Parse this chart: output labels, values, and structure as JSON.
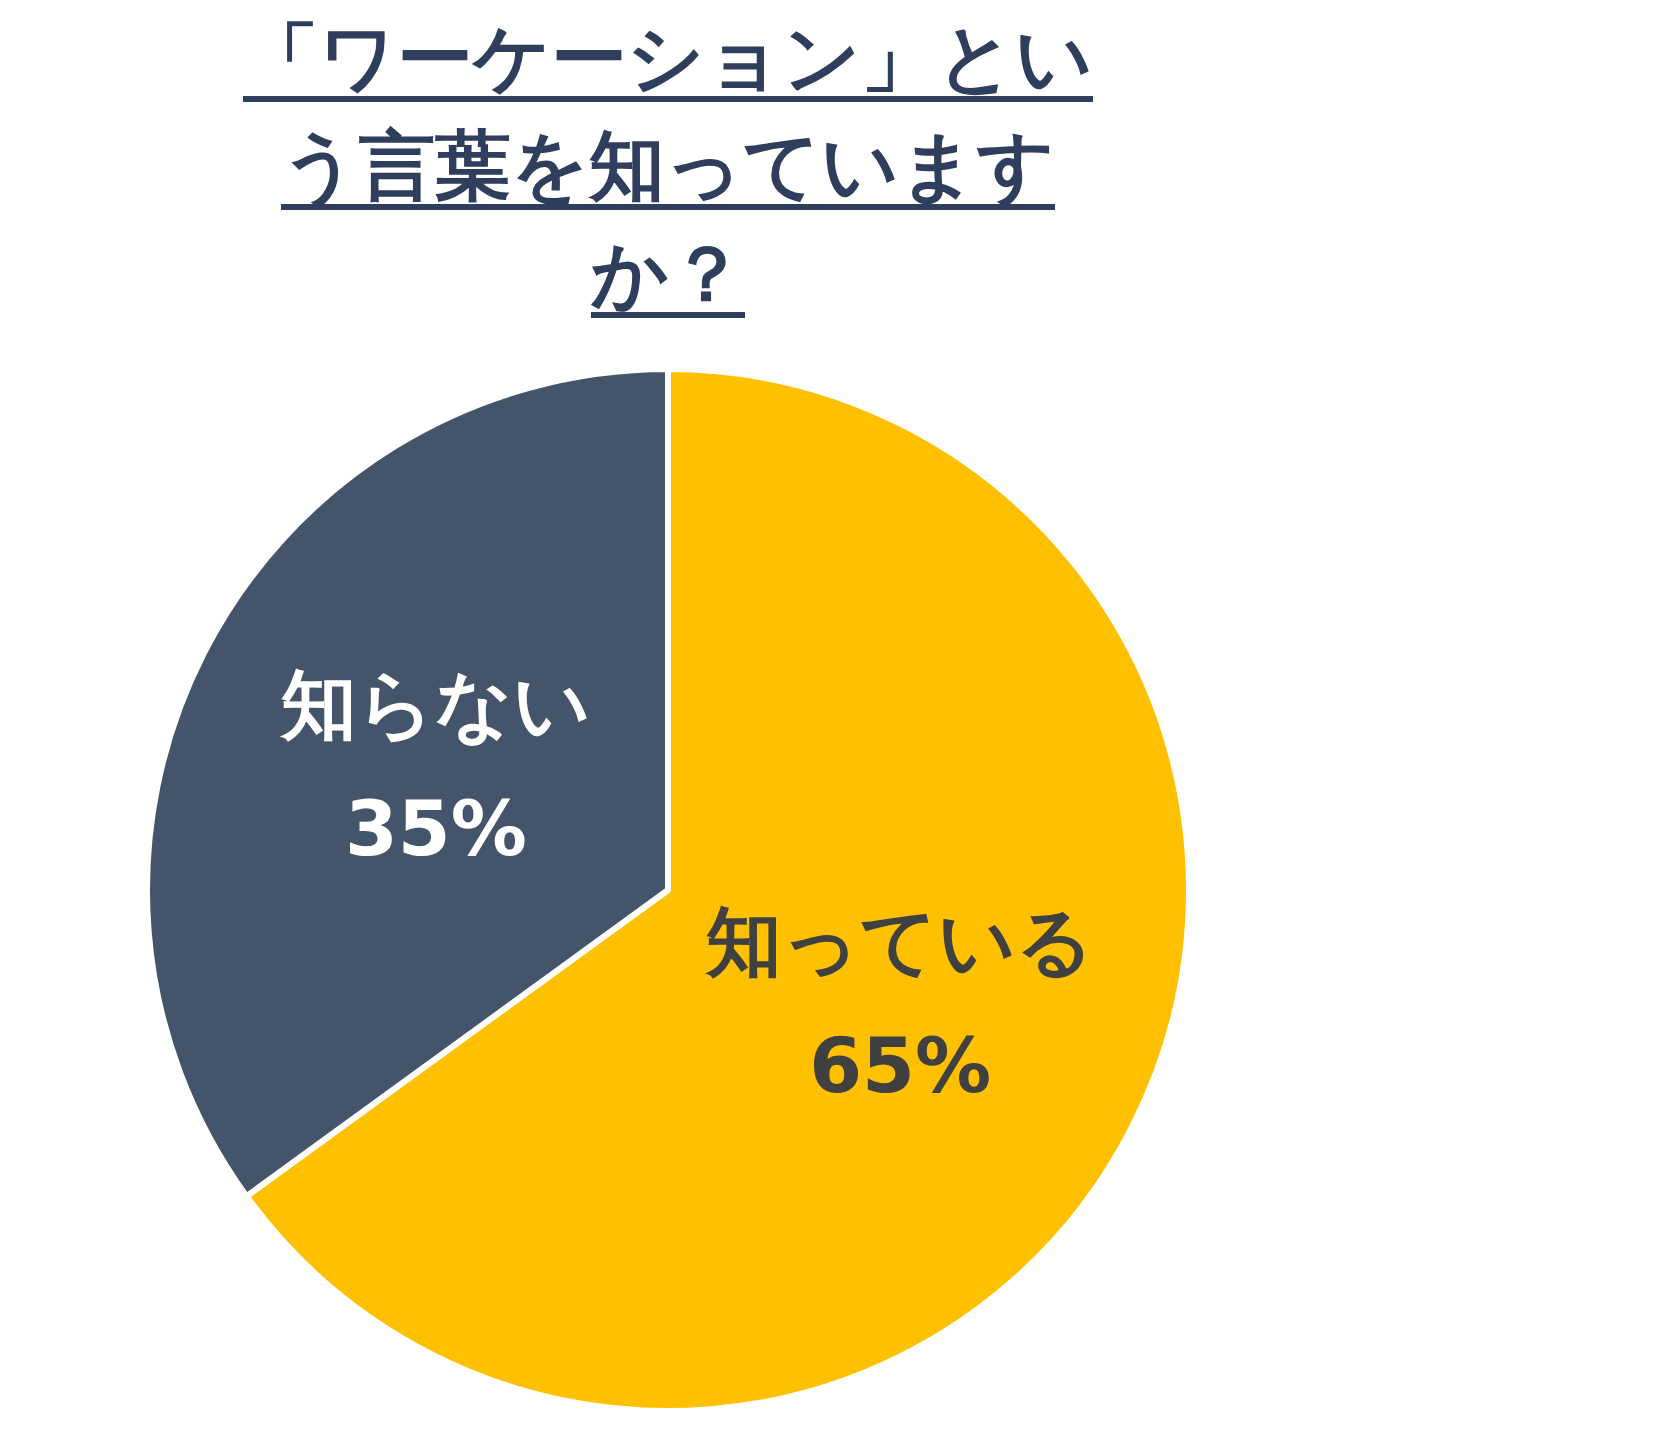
{
  "chart_data": {
    "type": "pie",
    "title": "「ワーケーション」という言葉を知っていますか？",
    "categories": [
      "知っている",
      "知らない"
    ],
    "values": [
      65,
      35
    ],
    "colors": [
      "#ffc000",
      "#44546a"
    ],
    "value_labels": [
      "65%",
      "35%"
    ],
    "legend": false
  }
}
